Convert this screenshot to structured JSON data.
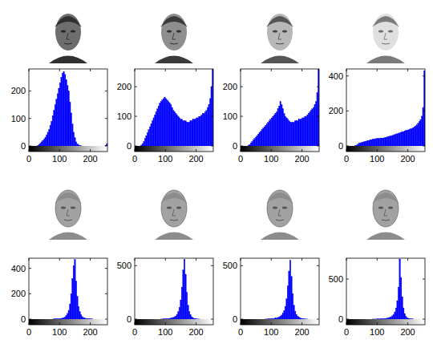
{
  "chart_data": [
    {
      "type": "histogram",
      "color": "#0000ff",
      "xlim": [
        0,
        256
      ],
      "ylim": [
        0,
        280
      ],
      "xticks": [
        0,
        100,
        200
      ],
      "yticks": [
        0,
        100,
        200
      ],
      "bins": [
        0,
        4,
        8,
        12,
        16,
        20,
        24,
        28,
        32,
        36,
        40,
        44,
        48,
        52,
        56,
        60,
        64,
        68,
        72,
        76,
        80,
        84,
        88,
        92,
        96,
        100,
        104,
        108,
        112,
        116,
        120,
        124,
        128,
        132,
        136,
        140,
        144,
        148,
        152,
        156,
        160,
        164,
        168,
        172,
        176,
        180,
        184,
        188,
        192,
        196,
        200,
        204,
        208,
        212,
        216,
        220,
        224,
        228,
        232,
        236,
        240,
        244,
        248,
        252,
        256
      ],
      "values": [
        0,
        0,
        0,
        0,
        0,
        0,
        0,
        2,
        5,
        10,
        15,
        20,
        25,
        30,
        40,
        50,
        60,
        75,
        90,
        110,
        130,
        150,
        170,
        190,
        210,
        230,
        250,
        265,
        270,
        260,
        240,
        220,
        200,
        160,
        120,
        80,
        50,
        30,
        15,
        8,
        4,
        2,
        1,
        0,
        0,
        0,
        0,
        0,
        0,
        0,
        0,
        0,
        0,
        0,
        0,
        0,
        0,
        0,
        0,
        0,
        0,
        0,
        2,
        8
      ]
    },
    {
      "type": "histogram",
      "color": "#0000ff",
      "xlim": [
        0,
        256
      ],
      "ylim": [
        0,
        260
      ],
      "xticks": [
        0,
        100,
        200
      ],
      "yticks": [
        0,
        100,
        200
      ],
      "bins": [
        0,
        4,
        8,
        12,
        16,
        20,
        24,
        28,
        32,
        36,
        40,
        44,
        48,
        52,
        56,
        60,
        64,
        68,
        72,
        76,
        80,
        84,
        88,
        92,
        96,
        100,
        104,
        108,
        112,
        116,
        120,
        124,
        128,
        132,
        136,
        140,
        144,
        148,
        152,
        156,
        160,
        164,
        168,
        172,
        176,
        180,
        184,
        188,
        192,
        196,
        200,
        204,
        208,
        212,
        216,
        220,
        224,
        228,
        232,
        236,
        240,
        244,
        248,
        252,
        256
      ],
      "values": [
        0,
        0,
        0,
        0,
        0,
        3,
        8,
        15,
        25,
        35,
        45,
        55,
        65,
        75,
        85,
        95,
        105,
        115,
        125,
        135,
        145,
        150,
        155,
        160,
        165,
        160,
        155,
        150,
        145,
        140,
        130,
        120,
        115,
        110,
        105,
        100,
        95,
        90,
        90,
        85,
        85,
        85,
        80,
        80,
        80,
        85,
        85,
        90,
        90,
        90,
        95,
        95,
        100,
        100,
        105,
        110,
        110,
        115,
        120,
        130,
        140,
        160,
        200,
        260
      ]
    },
    {
      "type": "histogram",
      "color": "#0000ff",
      "xlim": [
        0,
        256
      ],
      "ylim": [
        0,
        260
      ],
      "xticks": [
        0,
        100,
        200
      ],
      "yticks": [
        0,
        100,
        200
      ],
      "bins": [
        0,
        4,
        8,
        12,
        16,
        20,
        24,
        28,
        32,
        36,
        40,
        44,
        48,
        52,
        56,
        60,
        64,
        68,
        72,
        76,
        80,
        84,
        88,
        92,
        96,
        100,
        104,
        108,
        112,
        116,
        120,
        124,
        128,
        132,
        136,
        140,
        144,
        148,
        152,
        156,
        160,
        164,
        168,
        172,
        176,
        180,
        184,
        188,
        192,
        196,
        200,
        204,
        208,
        212,
        216,
        220,
        224,
        228,
        232,
        236,
        240,
        244,
        248,
        252,
        256
      ],
      "values": [
        0,
        0,
        0,
        0,
        0,
        0,
        2,
        5,
        10,
        15,
        20,
        25,
        30,
        35,
        40,
        45,
        50,
        55,
        60,
        65,
        70,
        75,
        80,
        85,
        90,
        95,
        100,
        105,
        110,
        115,
        125,
        135,
        150,
        140,
        125,
        110,
        100,
        95,
        90,
        85,
        80,
        80,
        80,
        80,
        85,
        85,
        85,
        90,
        90,
        90,
        95,
        95,
        100,
        100,
        105,
        110,
        115,
        120,
        125,
        130,
        140,
        150,
        180,
        260
      ]
    },
    {
      "type": "histogram",
      "color": "#0000ff",
      "xlim": [
        0,
        256
      ],
      "ylim": [
        0,
        440
      ],
      "xticks": [
        0,
        100,
        200
      ],
      "yticks": [
        0,
        200,
        400
      ],
      "bins": [
        0,
        4,
        8,
        12,
        16,
        20,
        24,
        28,
        32,
        36,
        40,
        44,
        48,
        52,
        56,
        60,
        64,
        68,
        72,
        76,
        80,
        84,
        88,
        92,
        96,
        100,
        104,
        108,
        112,
        116,
        120,
        124,
        128,
        132,
        136,
        140,
        144,
        148,
        152,
        156,
        160,
        164,
        168,
        172,
        176,
        180,
        184,
        188,
        192,
        196,
        200,
        204,
        208,
        212,
        216,
        220,
        224,
        228,
        232,
        236,
        240,
        244,
        248,
        252,
        256
      ],
      "values": [
        0,
        0,
        0,
        0,
        0,
        0,
        0,
        2,
        5,
        10,
        15,
        18,
        20,
        22,
        24,
        26,
        28,
        30,
        32,
        34,
        36,
        38,
        40,
        40,
        42,
        42,
        44,
        44,
        45,
        45,
        46,
        48,
        50,
        52,
        54,
        56,
        58,
        60,
        62,
        65,
        68,
        70,
        72,
        75,
        78,
        80,
        82,
        85,
        88,
        90,
        92,
        95,
        98,
        100,
        105,
        110,
        115,
        120,
        130,
        140,
        150,
        170,
        220,
        430
      ]
    },
    {
      "type": "histogram",
      "color": "#0000ff",
      "xlim": [
        0,
        256
      ],
      "ylim": [
        0,
        480
      ],
      "xticks": [
        0,
        100,
        200
      ],
      "yticks": [
        0,
        200,
        400
      ],
      "bins": [
        0,
        4,
        8,
        12,
        16,
        20,
        24,
        28,
        32,
        36,
        40,
        44,
        48,
        52,
        56,
        60,
        64,
        68,
        72,
        76,
        80,
        84,
        88,
        92,
        96,
        100,
        104,
        108,
        112,
        116,
        120,
        124,
        128,
        132,
        136,
        140,
        144,
        148,
        152,
        156,
        160,
        164,
        168,
        172,
        176,
        180,
        184,
        188,
        192,
        196,
        200,
        204,
        208,
        212,
        216,
        220,
        224,
        228,
        232,
        236,
        240,
        244,
        248,
        252,
        256
      ],
      "values": [
        0,
        0,
        0,
        0,
        0,
        0,
        0,
        0,
        0,
        0,
        0,
        0,
        0,
        0,
        0,
        0,
        0,
        0,
        0,
        0,
        1,
        1,
        2,
        2,
        3,
        4,
        6,
        8,
        12,
        18,
        28,
        45,
        70,
        120,
        200,
        320,
        420,
        470,
        300,
        180,
        100,
        60,
        35,
        20,
        12,
        8,
        5,
        3,
        2,
        2,
        1,
        1,
        0,
        0,
        0,
        0,
        0,
        0,
        0,
        0,
        0,
        0,
        0,
        0
      ]
    },
    {
      "type": "histogram",
      "color": "#0000ff",
      "xlim": [
        0,
        256
      ],
      "ylim": [
        0,
        570
      ],
      "xticks": [
        0,
        100,
        200
      ],
      "yticks": [
        0,
        500
      ],
      "bins": [
        0,
        4,
        8,
        12,
        16,
        20,
        24,
        28,
        32,
        36,
        40,
        44,
        48,
        52,
        56,
        60,
        64,
        68,
        72,
        76,
        80,
        84,
        88,
        92,
        96,
        100,
        104,
        108,
        112,
        116,
        120,
        124,
        128,
        132,
        136,
        140,
        144,
        148,
        152,
        156,
        160,
        164,
        168,
        172,
        176,
        180,
        184,
        188,
        192,
        196,
        200,
        204,
        208,
        212,
        216,
        220,
        224,
        228,
        232,
        236,
        240,
        244,
        248,
        252,
        256
      ],
      "values": [
        0,
        0,
        0,
        0,
        0,
        0,
        0,
        0,
        0,
        0,
        0,
        0,
        0,
        0,
        0,
        0,
        0,
        0,
        0,
        0,
        0,
        1,
        1,
        2,
        2,
        3,
        4,
        5,
        7,
        9,
        12,
        16,
        22,
        30,
        45,
        70,
        110,
        180,
        300,
        460,
        560,
        420,
        250,
        130,
        70,
        40,
        22,
        12,
        7,
        4,
        2,
        1,
        1,
        0,
        0,
        0,
        0,
        0,
        0,
        0,
        0,
        0,
        0,
        0
      ]
    },
    {
      "type": "histogram",
      "color": "#0000ff",
      "xlim": [
        0,
        256
      ],
      "ylim": [
        0,
        570
      ],
      "xticks": [
        0,
        100,
        200
      ],
      "yticks": [
        0,
        500
      ],
      "bins": [
        0,
        4,
        8,
        12,
        16,
        20,
        24,
        28,
        32,
        36,
        40,
        44,
        48,
        52,
        56,
        60,
        64,
        68,
        72,
        76,
        80,
        84,
        88,
        92,
        96,
        100,
        104,
        108,
        112,
        116,
        120,
        124,
        128,
        132,
        136,
        140,
        144,
        148,
        152,
        156,
        160,
        164,
        168,
        172,
        176,
        180,
        184,
        188,
        192,
        196,
        200,
        204,
        208,
        212,
        216,
        220,
        224,
        228,
        232,
        236,
        240,
        244,
        248,
        252,
        256
      ],
      "values": [
        0,
        0,
        0,
        0,
        0,
        0,
        0,
        0,
        0,
        0,
        0,
        0,
        0,
        0,
        0,
        0,
        0,
        0,
        0,
        0,
        1,
        1,
        2,
        2,
        3,
        4,
        5,
        7,
        9,
        12,
        16,
        20,
        28,
        38,
        55,
        80,
        120,
        190,
        310,
        450,
        550,
        400,
        240,
        130,
        75,
        45,
        28,
        18,
        12,
        8,
        5,
        3,
        2,
        1,
        1,
        0,
        0,
        0,
        0,
        0,
        0,
        0,
        0,
        0
      ]
    },
    {
      "type": "histogram",
      "color": "#0000ff",
      "xlim": [
        0,
        256
      ],
      "ylim": [
        0,
        760
      ],
      "xticks": [
        0,
        100,
        200
      ],
      "yticks": [
        0,
        500
      ],
      "bins": [
        0,
        4,
        8,
        12,
        16,
        20,
        24,
        28,
        32,
        36,
        40,
        44,
        48,
        52,
        56,
        60,
        64,
        68,
        72,
        76,
        80,
        84,
        88,
        92,
        96,
        100,
        104,
        108,
        112,
        116,
        120,
        124,
        128,
        132,
        136,
        140,
        144,
        148,
        152,
        156,
        160,
        164,
        168,
        172,
        176,
        180,
        184,
        188,
        192,
        196,
        200,
        204,
        208,
        212,
        216,
        220,
        224,
        228,
        232,
        236,
        240,
        244,
        248,
        252,
        256
      ],
      "values": [
        0,
        0,
        0,
        0,
        0,
        0,
        0,
        0,
        0,
        0,
        0,
        0,
        0,
        0,
        0,
        0,
        0,
        0,
        0,
        0,
        0,
        1,
        1,
        1,
        1,
        2,
        2,
        3,
        4,
        5,
        6,
        8,
        10,
        13,
        17,
        22,
        30,
        42,
        60,
        90,
        140,
        230,
        400,
        750,
        520,
        280,
        140,
        70,
        35,
        18,
        10,
        6,
        3,
        2,
        1,
        0,
        0,
        0,
        0,
        0,
        0,
        0,
        0,
        0
      ]
    }
  ]
}
